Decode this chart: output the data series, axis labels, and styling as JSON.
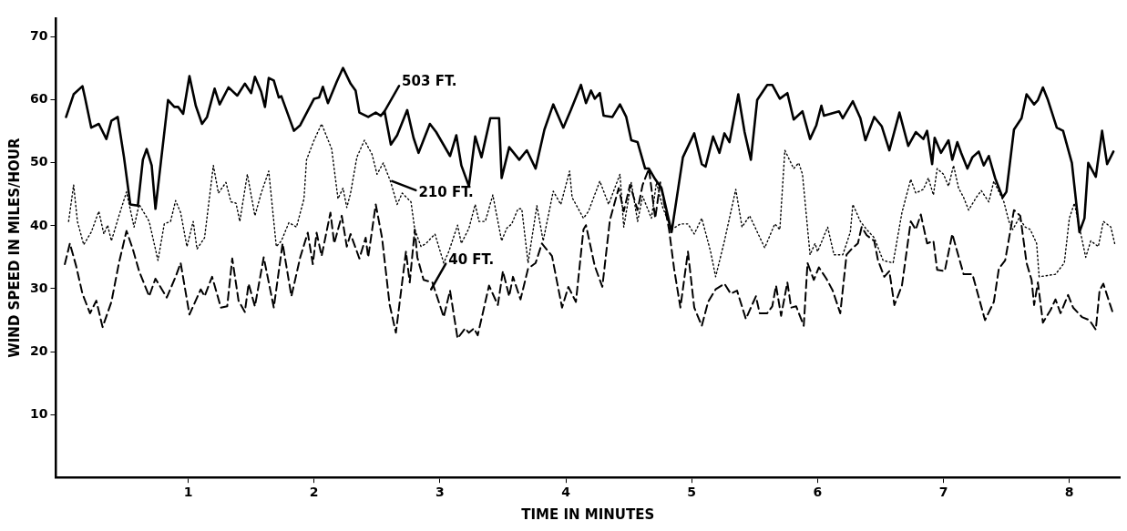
{
  "chart_data": {
    "type": "line",
    "xlabel": "TIME IN MINUTES",
    "ylabel": "WIND SPEED IN MILES/HOUR",
    "xlim": [
      -0.05,
      8.4
    ],
    "xticks": [
      1,
      2,
      3,
      4,
      5,
      6,
      7,
      8
    ],
    "ylim": [
      0,
      73
    ],
    "yticks": [
      10,
      20,
      30,
      40,
      50,
      60,
      70
    ],
    "marker": "none",
    "series": [
      {
        "color": "#000000",
        "line_style": "solid",
        "x": [
          0.03,
          0.09,
          0.16,
          0.18,
          0.23,
          0.29,
          0.35,
          0.39,
          0.44,
          0.49,
          0.54,
          0.6,
          0.64,
          0.67,
          0.71,
          0.74,
          0.78,
          0.84,
          0.89,
          0.92,
          0.96,
          1.01,
          1.06,
          1.11,
          1.15,
          1.21,
          1.25,
          1.32,
          1.39,
          1.45,
          1.5,
          1.53,
          1.58,
          1.61,
          1.64,
          1.68,
          1.72,
          1.74,
          1.84,
          1.89,
          2.0,
          2.04,
          2.07,
          2.11,
          2.18,
          2.23,
          2.29,
          2.33,
          2.36,
          2.43,
          2.49,
          2.53,
          2.56,
          2.61,
          2.66,
          2.74,
          2.79,
          2.83,
          2.92,
          2.97,
          3.08,
          3.13,
          3.17,
          3.23,
          3.28,
          3.33,
          3.4,
          3.47,
          3.49,
          3.55,
          3.63,
          3.69,
          3.76,
          3.83,
          3.9,
          3.98,
          4.04,
          4.12,
          4.16,
          4.2,
          4.23,
          4.27,
          4.3,
          4.37,
          4.43,
          4.48,
          4.52,
          4.57,
          4.63,
          4.66,
          4.71,
          4.76,
          4.84,
          4.93,
          5.02,
          5.08,
          5.11,
          5.17,
          5.22,
          5.26,
          5.3,
          5.37,
          5.42,
          5.47,
          5.52,
          5.6,
          5.64,
          5.7,
          5.76,
          5.81,
          5.88,
          5.94,
          5.99,
          6.03,
          6.05,
          6.17,
          6.2,
          6.28,
          6.34,
          6.38,
          6.45,
          6.51,
          6.57,
          6.65,
          6.72,
          6.78,
          6.84,
          6.87,
          6.91,
          6.93,
          6.98,
          7.04,
          7.07,
          7.11,
          7.14,
          7.19,
          7.23,
          7.28,
          7.32,
          7.36,
          7.41,
          7.47,
          7.5,
          7.56,
          7.62,
          7.66,
          7.72,
          7.75,
          7.79,
          7.83,
          7.9,
          7.95,
          8.02,
          8.08,
          8.12,
          8.15,
          8.21,
          8.26,
          8.3,
          8.35
        ],
        "values": [
          57.3,
          60.9,
          62.2,
          60.4,
          55.6,
          56.2,
          53.8,
          56.7,
          57.3,
          50.9,
          43.4,
          43.2,
          50.5,
          52.2,
          49.6,
          42.7,
          49.6,
          60.0,
          58.9,
          58.9,
          57.8,
          63.8,
          59.1,
          56.2,
          57.3,
          61.8,
          59.3,
          62.0,
          60.7,
          62.6,
          61.1,
          63.7,
          61.3,
          58.9,
          63.5,
          63.1,
          60.4,
          60.6,
          55.1,
          56.0,
          60.2,
          60.4,
          62.1,
          59.5,
          62.9,
          65.1,
          62.6,
          61.5,
          58.0,
          57.3,
          58.0,
          57.5,
          58.2,
          52.9,
          54.4,
          58.4,
          54.0,
          51.6,
          56.2,
          54.9,
          51.1,
          54.4,
          49.6,
          46.3,
          54.2,
          50.9,
          57.1,
          57.1,
          47.6,
          52.5,
          50.5,
          52.0,
          49.1,
          55.3,
          59.3,
          55.6,
          58.4,
          62.4,
          59.5,
          61.5,
          60.2,
          61.1,
          57.5,
          57.3,
          59.3,
          57.3,
          53.6,
          53.3,
          49.1,
          49.1,
          47.4,
          46.0,
          39.0,
          50.9,
          54.7,
          49.8,
          49.4,
          54.2,
          51.6,
          54.7,
          53.3,
          60.9,
          54.9,
          50.5,
          60.0,
          62.4,
          62.4,
          60.2,
          61.1,
          56.9,
          58.2,
          53.8,
          56.0,
          59.1,
          57.5,
          58.2,
          57.1,
          59.8,
          57.1,
          53.6,
          57.3,
          55.8,
          52.0,
          58.0,
          52.7,
          54.9,
          53.8,
          55.1,
          49.8,
          54.0,
          51.6,
          53.6,
          50.5,
          53.3,
          51.6,
          49.1,
          50.9,
          51.8,
          49.6,
          51.1,
          47.6,
          44.5,
          45.4,
          55.3,
          57.1,
          60.9,
          59.3,
          60.0,
          62.0,
          60.0,
          55.6,
          55.1,
          50.0,
          39.0,
          41.2,
          50.0,
          47.8,
          55.1,
          49.8,
          51.8
        ]
      },
      {
        "color": "#000000",
        "line_style": "dotted",
        "x": [
          0.05,
          0.09,
          0.12,
          0.17,
          0.23,
          0.29,
          0.33,
          0.36,
          0.39,
          0.45,
          0.51,
          0.57,
          0.61,
          0.69,
          0.76,
          0.81,
          0.86,
          0.9,
          0.94,
          0.99,
          1.04,
          1.07,
          1.13,
          1.2,
          1.24,
          1.3,
          1.34,
          1.38,
          1.41,
          1.47,
          1.53,
          1.58,
          1.64,
          1.7,
          1.74,
          1.8,
          1.86,
          1.92,
          1.94,
          2.0,
          2.06,
          2.14,
          2.19,
          2.23,
          2.26,
          2.29,
          2.34,
          2.4,
          2.46,
          2.5,
          2.55,
          2.61,
          2.66,
          2.7,
          2.77,
          2.8,
          2.85,
          2.89,
          2.96,
          3.03,
          3.07,
          3.14,
          3.17,
          3.23,
          3.28,
          3.31,
          3.36,
          3.42,
          3.49,
          3.53,
          3.57,
          3.62,
          3.65,
          3.7,
          3.77,
          3.82,
          3.9,
          3.96,
          4.03,
          4.05,
          4.14,
          4.18,
          4.27,
          4.34,
          4.43,
          4.46,
          4.52,
          4.57,
          4.61,
          4.68,
          4.72,
          4.77,
          4.84,
          4.91,
          4.97,
          5.02,
          5.08,
          5.15,
          5.19,
          5.26,
          5.35,
          5.4,
          5.46,
          5.58,
          5.66,
          5.7,
          5.74,
          5.81,
          5.85,
          5.88,
          5.94,
          5.98,
          6.0,
          6.08,
          6.13,
          6.2,
          6.26,
          6.28,
          6.34,
          6.39,
          6.45,
          6.52,
          6.6,
          6.67,
          6.74,
          6.78,
          6.84,
          6.88,
          6.92,
          6.95,
          7.0,
          7.04,
          7.08,
          7.12,
          7.16,
          7.2,
          7.26,
          7.3,
          7.36,
          7.4,
          7.48,
          7.52,
          7.55,
          7.6,
          7.65,
          7.69,
          7.74,
          7.76,
          7.89,
          7.96,
          8.0,
          8.04,
          8.13,
          8.17,
          8.23,
          8.27,
          8.33,
          8.36
        ],
        "values": [
          40.7,
          46.5,
          40.7,
          37.0,
          39.0,
          42.3,
          38.7,
          40.1,
          37.6,
          41.6,
          45.4,
          39.8,
          43.4,
          40.7,
          34.5,
          40.3,
          40.7,
          44.0,
          42.1,
          36.7,
          40.7,
          36.3,
          38.1,
          49.6,
          45.2,
          46.9,
          43.8,
          43.6,
          40.7,
          48.2,
          41.6,
          45.2,
          48.7,
          36.7,
          37.6,
          40.5,
          39.8,
          44.3,
          50.5,
          53.6,
          56.2,
          52.2,
          44.3,
          46.0,
          42.9,
          45.2,
          50.9,
          53.6,
          51.4,
          48.2,
          50.0,
          46.9,
          43.4,
          45.2,
          43.8,
          39.4,
          36.7,
          37.2,
          38.7,
          34.1,
          35.9,
          40.1,
          37.2,
          39.6,
          43.4,
          40.7,
          40.7,
          44.9,
          37.6,
          39.6,
          40.3,
          42.7,
          42.7,
          34.1,
          43.2,
          37.6,
          45.5,
          43.4,
          48.7,
          44.5,
          41.2,
          42.3,
          47.1,
          43.4,
          48.2,
          39.8,
          46.9,
          40.7,
          44.7,
          41.2,
          46.9,
          42.9,
          39.4,
          40.3,
          40.3,
          38.7,
          41.2,
          35.9,
          31.9,
          37.6,
          45.8,
          39.8,
          41.6,
          36.5,
          40.3,
          39.4,
          52.0,
          49.1,
          50.0,
          48.2,
          35.4,
          37.2,
          35.9,
          39.8,
          35.4,
          35.4,
          39.0,
          43.4,
          40.7,
          39.4,
          38.1,
          34.5,
          34.1,
          42.1,
          47.4,
          45.2,
          45.8,
          47.6,
          44.9,
          49.1,
          48.2,
          46.3,
          49.6,
          46.0,
          44.5,
          42.5,
          44.5,
          45.6,
          43.8,
          47.1,
          43.8,
          40.7,
          39.4,
          41.2,
          39.8,
          39.4,
          37.2,
          31.9,
          32.3,
          34.1,
          41.2,
          43.6,
          35.0,
          37.6,
          36.7,
          40.7,
          39.8,
          37.2
        ]
      },
      {
        "color": "#000000",
        "line_style": "dashed",
        "x": [
          0.02,
          0.06,
          0.11,
          0.16,
          0.22,
          0.27,
          0.32,
          0.39,
          0.45,
          0.51,
          0.56,
          0.61,
          0.69,
          0.74,
          0.83,
          0.9,
          0.94,
          1.01,
          1.1,
          1.13,
          1.19,
          1.26,
          1.31,
          1.35,
          1.4,
          1.45,
          1.48,
          1.53,
          1.6,
          1.68,
          1.75,
          1.82,
          1.89,
          1.95,
          1.99,
          2.02,
          2.06,
          2.13,
          2.16,
          2.22,
          2.26,
          2.29,
          2.36,
          2.41,
          2.43,
          2.49,
          2.54,
          2.6,
          2.65,
          2.73,
          2.76,
          2.8,
          2.82,
          2.87,
          2.94,
          3.03,
          3.08,
          3.14,
          3.2,
          3.23,
          3.27,
          3.3,
          3.39,
          3.46,
          3.5,
          3.55,
          3.58,
          3.64,
          3.7,
          3.76,
          3.81,
          3.89,
          3.97,
          4.02,
          4.08,
          4.14,
          4.16,
          4.23,
          4.29,
          4.35,
          4.42,
          4.46,
          4.51,
          4.57,
          4.61,
          4.66,
          4.71,
          4.75,
          4.82,
          4.86,
          4.91,
          4.97,
          5.02,
          5.08,
          5.13,
          5.19,
          5.26,
          5.31,
          5.36,
          5.43,
          5.51,
          5.54,
          5.6,
          5.64,
          5.67,
          5.71,
          5.76,
          5.79,
          5.83,
          5.89,
          5.92,
          5.97,
          6.01,
          6.07,
          6.12,
          6.18,
          6.23,
          6.27,
          6.32,
          6.35,
          6.39,
          6.45,
          6.48,
          6.53,
          6.57,
          6.61,
          6.67,
          6.74,
          6.78,
          6.82,
          6.87,
          6.92,
          6.95,
          7.01,
          7.07,
          7.16,
          7.23,
          7.33,
          7.4,
          7.44,
          7.49,
          7.56,
          7.61,
          7.66,
          7.7,
          7.72,
          7.75,
          7.79,
          7.85,
          7.89,
          7.93,
          7.99,
          8.03,
          8.1,
          8.16,
          8.21,
          8.24,
          8.27,
          8.32,
          8.35
        ],
        "values": [
          33.9,
          37.2,
          33.6,
          29.2,
          26.1,
          28.1,
          23.9,
          27.9,
          34.1,
          39.2,
          36.3,
          32.8,
          28.8,
          31.6,
          28.6,
          31.9,
          34.1,
          25.9,
          29.9,
          28.8,
          31.9,
          27.0,
          27.2,
          34.8,
          28.1,
          26.3,
          30.8,
          27.2,
          35.0,
          27.0,
          37.2,
          28.8,
          35.0,
          38.9,
          33.9,
          38.9,
          35.2,
          42.1,
          37.2,
          41.6,
          36.7,
          38.7,
          34.8,
          38.1,
          35.0,
          43.4,
          38.1,
          27.5,
          23.0,
          35.9,
          31.0,
          39.4,
          35.0,
          31.4,
          31.0,
          25.5,
          29.7,
          22.1,
          23.7,
          23.0,
          23.7,
          22.6,
          30.5,
          27.4,
          32.8,
          28.8,
          31.9,
          28.3,
          33.2,
          34.1,
          37.2,
          35.2,
          27.0,
          30.3,
          27.9,
          39.4,
          40.1,
          33.6,
          30.3,
          40.9,
          46.0,
          42.3,
          46.5,
          42.5,
          46.5,
          49.1,
          41.2,
          46.9,
          39.4,
          33.2,
          27.0,
          35.9,
          27.0,
          24.1,
          27.9,
          29.9,
          30.8,
          29.2,
          29.7,
          25.2,
          28.8,
          26.1,
          26.1,
          27.2,
          30.5,
          25.7,
          31.0,
          27.0,
          27.2,
          24.1,
          34.1,
          31.4,
          33.4,
          31.6,
          29.7,
          26.1,
          35.4,
          36.3,
          37.2,
          39.8,
          38.5,
          37.6,
          34.5,
          31.9,
          32.8,
          27.4,
          30.5,
          40.7,
          39.4,
          41.8,
          37.2,
          37.6,
          33.0,
          32.8,
          38.7,
          32.3,
          32.3,
          25.0,
          27.9,
          33.2,
          34.5,
          42.5,
          41.6,
          34.1,
          31.4,
          27.4,
          31.0,
          24.6,
          26.6,
          28.3,
          26.1,
          29.0,
          27.0,
          25.5,
          25.0,
          23.5,
          29.7,
          30.8,
          27.7,
          25.9
        ]
      }
    ],
    "annotations": [
      {
        "text": "503 FT.",
        "x": 2.56,
        "y": 58.2
      },
      {
        "text": "210 FT.",
        "x": 2.62,
        "y": 47.1
      },
      {
        "text": "40 FT.",
        "x": 2.93,
        "y": 29.9
      }
    ]
  }
}
